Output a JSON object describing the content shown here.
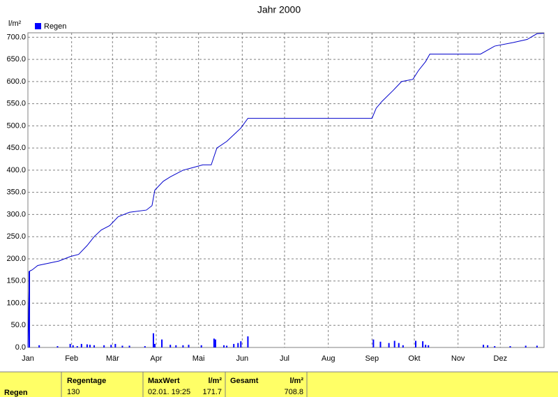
{
  "chart_data": {
    "type": "bar",
    "title": "Jahr 2000",
    "ylabel": "l/m²",
    "legend": "top-left",
    "grid": true,
    "xlim": [
      0,
      366
    ],
    "xticks": [
      {
        "value": 0,
        "label": "Jan"
      },
      {
        "value": 31,
        "label": "Feb"
      },
      {
        "value": 60,
        "label": "Mär"
      },
      {
        "value": 91,
        "label": "Apr"
      },
      {
        "value": 121,
        "label": "Mai"
      },
      {
        "value": 152,
        "label": "Jun"
      },
      {
        "value": 182,
        "label": "Jul"
      },
      {
        "value": 213,
        "label": "Aug"
      },
      {
        "value": 244,
        "label": "Sep"
      },
      {
        "value": 274,
        "label": "Okt"
      },
      {
        "value": 305,
        "label": "Nov"
      },
      {
        "value": 335,
        "label": "Dez"
      }
    ],
    "ylim": [
      0,
      710
    ],
    "yticks": [
      {
        "value": 0,
        "label": "0.0"
      },
      {
        "value": 50,
        "label": "50.0"
      },
      {
        "value": 100,
        "label": "100.0"
      },
      {
        "value": 150,
        "label": "150.0"
      },
      {
        "value": 200,
        "label": "200.0"
      },
      {
        "value": 250,
        "label": "250.0"
      },
      {
        "value": 300,
        "label": "300.0"
      },
      {
        "value": 350,
        "label": "350.0"
      },
      {
        "value": 400,
        "label": "400.0"
      },
      {
        "value": 450,
        "label": "450.0"
      },
      {
        "value": 500,
        "label": "500.0"
      },
      {
        "value": 550,
        "label": "550.0"
      },
      {
        "value": 600,
        "label": "600.0"
      },
      {
        "value": 650,
        "label": "650.0"
      },
      {
        "value": 700,
        "label": "700.0"
      }
    ],
    "series": [
      {
        "name": "Regen",
        "color": "#0000ff",
        "type": "bar",
        "x": [
          1,
          8,
          21,
          30,
          32,
          35,
          38,
          42,
          44,
          47,
          54,
          59,
          62,
          67,
          72,
          83,
          89,
          90,
          95,
          101,
          105,
          110,
          114,
          123,
          132,
          133,
          139,
          141,
          146,
          149,
          151,
          156,
          245,
          250,
          256,
          260,
          263,
          266,
          275,
          280,
          282,
          284,
          323,
          326,
          331,
          342,
          353,
          361
        ],
        "values": [
          171.7,
          5,
          3,
          8,
          5,
          3,
          8,
          7,
          6,
          5,
          5,
          6,
          8,
          4,
          4,
          3,
          32,
          8,
          18,
          6,
          5,
          5,
          6,
          5,
          20,
          18,
          5,
          4,
          8,
          10,
          14,
          25,
          18,
          13,
          10,
          15,
          10,
          5,
          15,
          14,
          6,
          5,
          6,
          5,
          3,
          3,
          4,
          4
        ]
      },
      {
        "color": "#0000cc",
        "type": "line",
        "x": [
          0,
          1,
          3,
          7,
          22,
          30,
          36,
          42,
          47,
          52,
          58,
          64,
          72,
          84,
          88,
          90,
          96,
          101,
          110,
          116,
          124,
          130,
          134,
          141,
          146,
          151,
          156,
          244,
          247,
          251,
          259,
          265,
          273,
          277,
          282,
          285,
          321,
          331,
          344,
          354,
          361,
          366
        ],
        "values": [
          0,
          172,
          175,
          185,
          195,
          205,
          210,
          230,
          250,
          265,
          275,
          295,
          305,
          310,
          320,
          355,
          375,
          385,
          400,
          405,
          412,
          412,
          450,
          465,
          480,
          495,
          517,
          517,
          540,
          555,
          580,
          600,
          605,
          625,
          645,
          662,
          662,
          680,
          688,
          695,
          708,
          708.8
        ]
      }
    ]
  },
  "table": {
    "row_label": "Regen",
    "columns": [
      {
        "header": "Regentage",
        "value": "130"
      },
      {
        "header": "MaxWert",
        "unit": "l/m²",
        "time": "02.01. 19:25",
        "value": "171.7"
      },
      {
        "header": "Gesamt",
        "unit": "l/m²",
        "value": "708.8"
      }
    ]
  }
}
